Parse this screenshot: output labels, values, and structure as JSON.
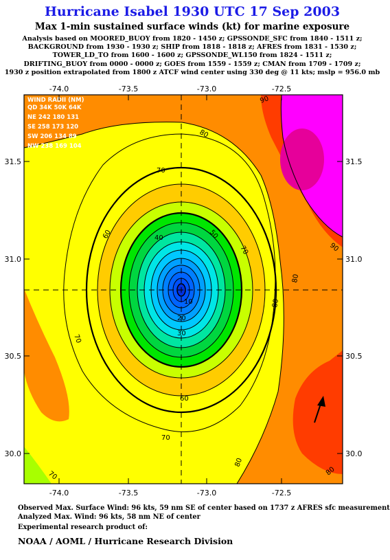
{
  "title": "Hurricane Isabel 1930 UTC 17 Sep 2003",
  "subtitle": "Max 1-min sustained surface winds (kt) for marine exposure",
  "analysis_lines": [
    "Analysis based on  MOORED_BUOY from 1820 - 1450 z;  GPSSONDE_SFC from 1840 - 1511 z;",
    "BACKGROUND from 1930 - 1930 z;  SHIP from 1818 - 1818 z;  AFRES from 1831 - 1530 z;",
    "TOWER_LD_TO from 1600 - 1600 z;  GPSSONDE_WL150 from 1824 - 1511 z;",
    "DRIFTING_BUOY from 0000 - 0000 z;  GOES from 1559 - 1559 z;  CMAN from 1709 - 1709 z;",
    "1930 z position extrapolated from 1800 z ATCF wind center using 330 deg @ 11 kts; mslp = 956.0 mb"
  ],
  "map": {
    "x_ticks": [
      "-74.0",
      "-73.5",
      "-73.0",
      "-72.5"
    ],
    "y_ticks": [
      "31.5",
      "31.0",
      "30.5",
      "30.0"
    ],
    "center_lon": -73.17,
    "center_lat": 30.84,
    "wind_radii": {
      "header": "WIND RADII (NM)",
      "columns": "QD 34K 50K 64K",
      "rows": [
        "NE 242 180 131",
        "SE 258 173 120",
        "SW 206 134  89",
        "NW 238 169 104"
      ]
    },
    "contour_labels": [
      "90",
      "80",
      "70",
      "60",
      "50",
      "40",
      "30",
      "20",
      "10",
      "70",
      "60",
      "70",
      "80",
      "70",
      "80",
      "90",
      "80",
      "70",
      "80"
    ],
    "colors": {
      "yellow": "#ffff00",
      "orange": "#ff8c00",
      "red_orange": "#ff3c00",
      "magenta": "#ff00ff",
      "green": "#00e600",
      "cyan": "#00e6e6",
      "blue": "#0050ff"
    }
  },
  "footer": {
    "observed": "Observed Max. Surface Wind: 96 kts, 59 nm SE of center based on 1737 z AFRES sfc measurement",
    "analyzed": "Analyzed Max. Wind: 96 kts, 58 nm NE of center",
    "experimental": "Experimental research product of:",
    "org": "NOAA / AOML / Hurricane Research Division"
  }
}
